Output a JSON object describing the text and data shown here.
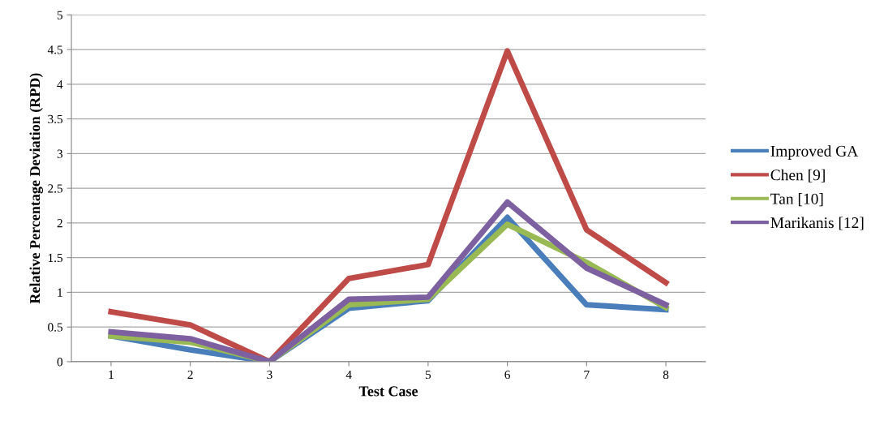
{
  "chart_data": {
    "type": "line",
    "xlabel": "Test Case",
    "ylabel": "Relative Percentage Deviation (RPD)",
    "categories": [
      "1",
      "2",
      "3",
      "4",
      "5",
      "6",
      "7",
      "8"
    ],
    "series": [
      {
        "name": "Improved GA",
        "color": "#4a7ebb",
        "values": [
          0.37,
          0.17,
          0,
          0.77,
          0.88,
          2.08,
          0.82,
          0.75
        ]
      },
      {
        "name": "Chen [9]",
        "color": "#be4b48",
        "values": [
          0.72,
          0.53,
          0,
          1.2,
          1.4,
          4.48,
          1.9,
          1.14
        ]
      },
      {
        "name": "Tan [10]",
        "color": "#98b954",
        "values": [
          0.37,
          0.28,
          0,
          0.82,
          0.9,
          1.98,
          1.43,
          0.78
        ]
      },
      {
        "name": "Marikanis [12]",
        "color": "#7d60a0",
        "values": [
          0.43,
          0.33,
          0,
          0.9,
          0.93,
          2.3,
          1.35,
          0.82
        ]
      }
    ],
    "ylim": [
      0,
      5
    ],
    "yticks": [
      0,
      0.5,
      1,
      1.5,
      2,
      2.5,
      3,
      3.5,
      4,
      4.5,
      5
    ],
    "grid": "y",
    "legend": "right",
    "marker": "none",
    "line_style": "solid"
  }
}
